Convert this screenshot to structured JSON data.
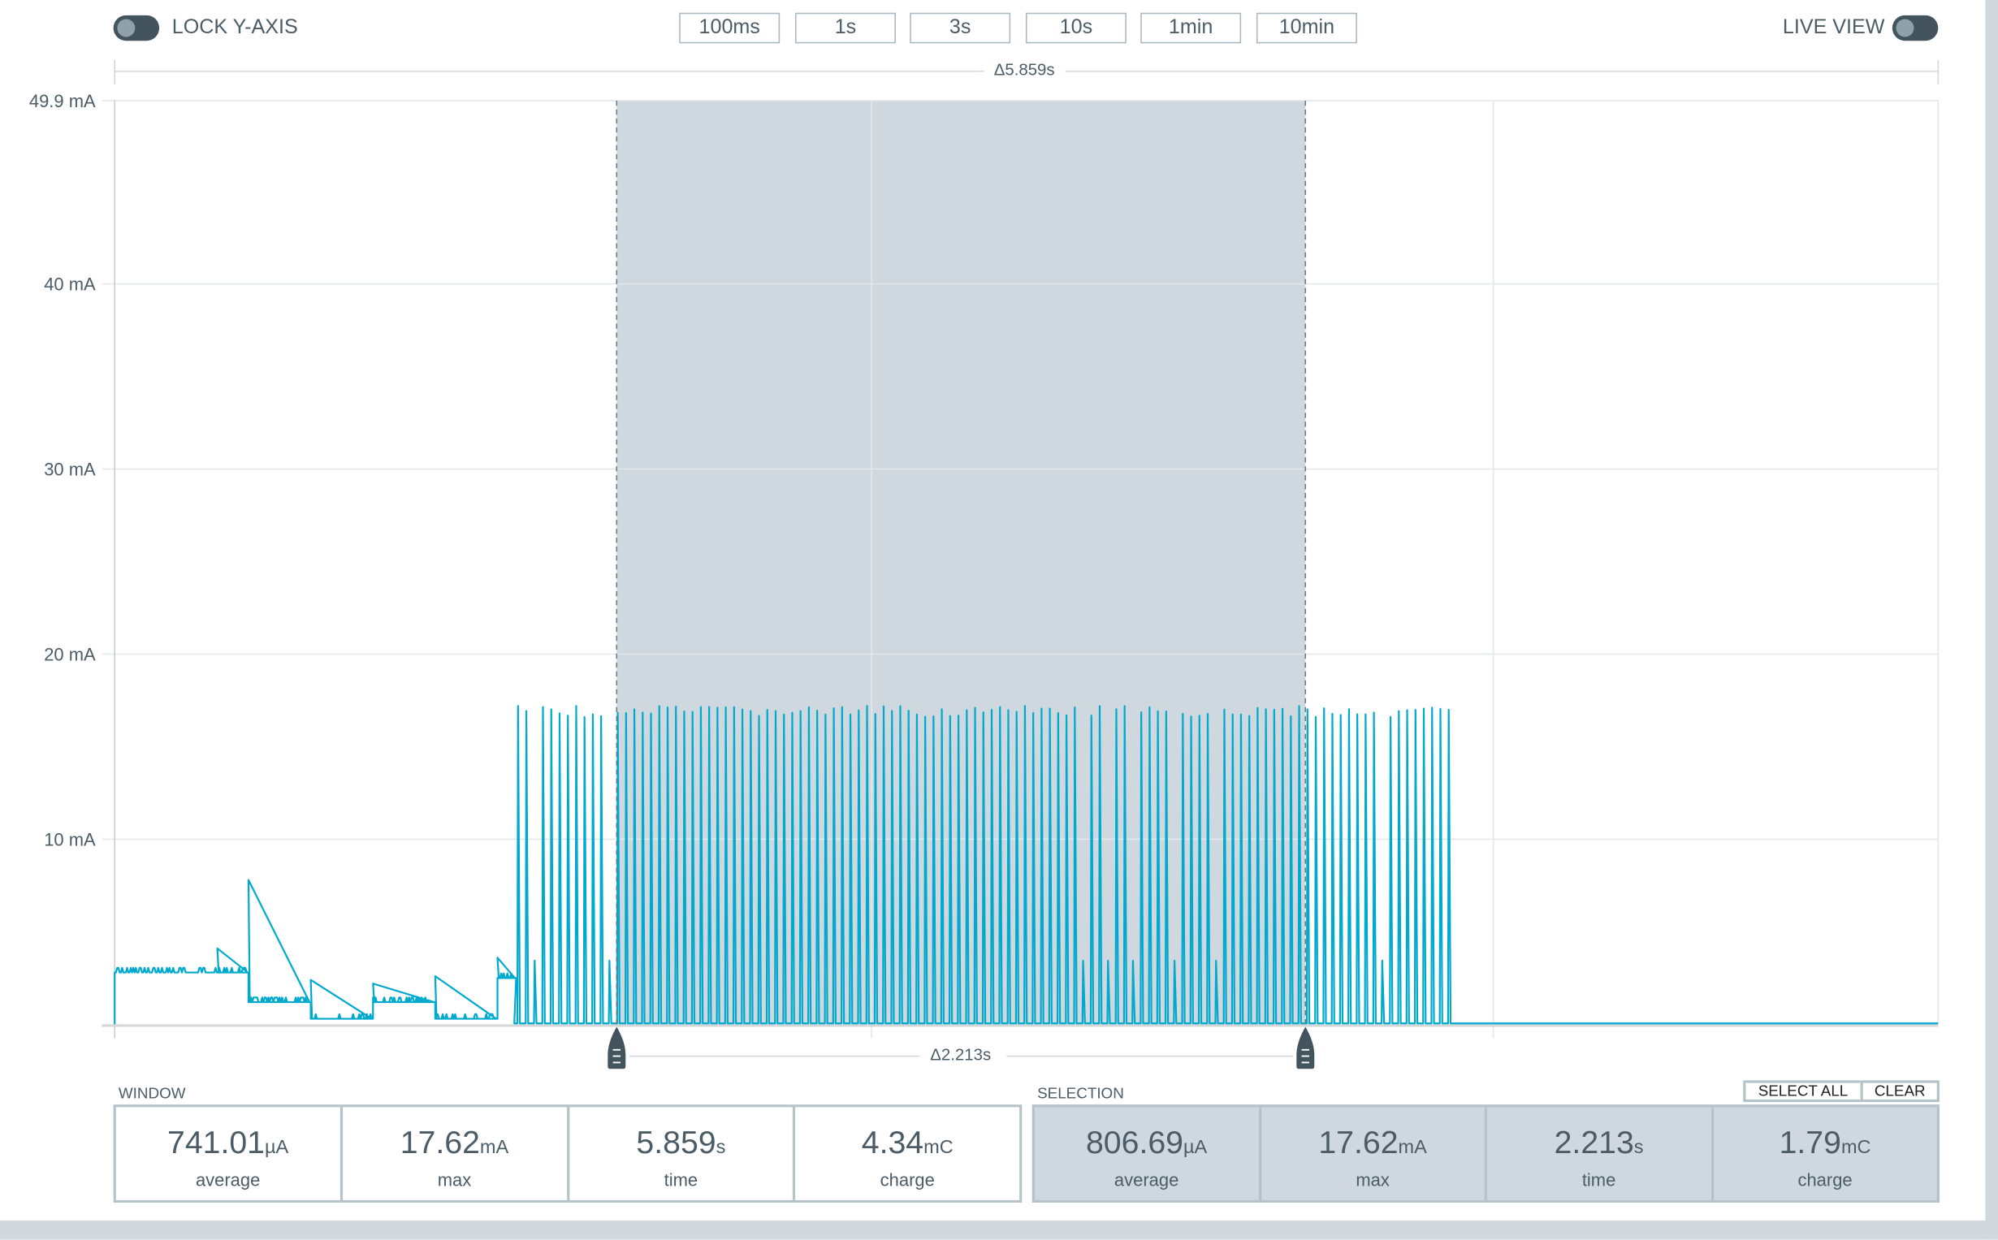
{
  "toolbar": {
    "lock_y_axis": {
      "label": "LOCK Y-AXIS",
      "on": false
    },
    "live_view": {
      "label": "LIVE VIEW",
      "on": false
    },
    "window_buttons": [
      "100ms",
      "1s",
      "3s",
      "10s",
      "1min",
      "10min"
    ]
  },
  "window_delta": "Δ5.859s",
  "selection_delta": "Δ2.213s",
  "colors": {
    "trace": "#00a9ce",
    "selection": "#cfd8de",
    "handle": "#44545e",
    "text": "#4b5c66"
  },
  "chart_data": {
    "type": "line",
    "ylabel": "",
    "y_unit": "mA",
    "ylim": [
      0,
      49.9
    ],
    "y_ticks": [
      "10 mA",
      "20 mA",
      "30 mA",
      "40 mA",
      "49.9 mA"
    ],
    "y_tick_values": [
      10,
      20,
      30,
      40,
      49.9
    ],
    "xlim_s": [
      0,
      5.859
    ],
    "grid": true,
    "selection_s": [
      1.613,
      3.826
    ],
    "trace": {
      "steps": [
        {
          "from": 0.0,
          "to": 0.43,
          "mA": 2.8
        },
        {
          "from": 0.43,
          "to": 0.63,
          "mA": 1.2
        },
        {
          "from": 0.63,
          "to": 0.83,
          "mA": 0.3
        },
        {
          "from": 0.83,
          "to": 1.03,
          "mA": 1.2
        },
        {
          "from": 1.03,
          "to": 1.23,
          "mA": 0.3
        },
        {
          "from": 1.23,
          "to": 1.29,
          "mA": 2.5
        }
      ],
      "steps_spikes": [
        {
          "t": 0.33,
          "mA": 4.1
        },
        {
          "t": 0.43,
          "mA": 7.8
        },
        {
          "t": 0.63,
          "mA": 2.4
        },
        {
          "t": 0.83,
          "mA": 2.2
        },
        {
          "t": 1.03,
          "mA": 2.6
        },
        {
          "t": 1.23,
          "mA": 3.6
        }
      ],
      "spike_train": {
        "start_s": 1.294,
        "end_s": 4.296,
        "period_s": 0.0267,
        "peak_mA": 17.2,
        "base_mA": 0.05
      },
      "idle_mA": 0.05
    }
  },
  "window": {
    "label": "WINDOW",
    "stats": [
      {
        "value": "741.01",
        "unit": "µA",
        "label": "average"
      },
      {
        "value": "17.62",
        "unit": "mA",
        "label": "max"
      },
      {
        "value": "5.859",
        "unit": "s",
        "label": "time"
      },
      {
        "value": "4.34",
        "unit": "mC",
        "label": "charge"
      }
    ]
  },
  "selection": {
    "label": "SELECTION",
    "select_all": "SELECT ALL",
    "clear": "CLEAR",
    "stats": [
      {
        "value": "806.69",
        "unit": "µA",
        "label": "average"
      },
      {
        "value": "17.62",
        "unit": "mA",
        "label": "max"
      },
      {
        "value": "2.213",
        "unit": "s",
        "label": "time"
      },
      {
        "value": "1.79",
        "unit": "mC",
        "label": "charge"
      }
    ]
  }
}
